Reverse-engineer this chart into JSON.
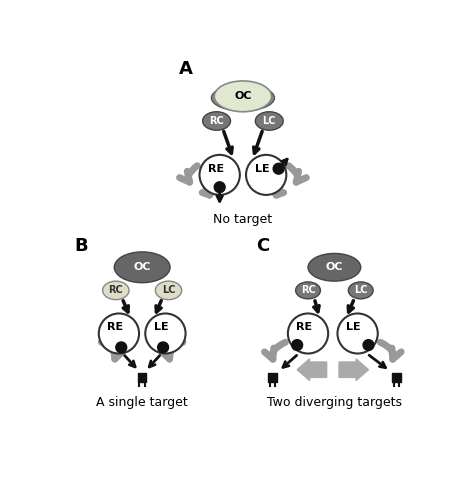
{
  "bg_color": "#ffffff",
  "oc_light_fill": "#e0e8d0",
  "oc_light_edge": "#888888",
  "oc_dark_fill": "#666666",
  "oc_dark_edge": "#444444",
  "rc_lc_light_fill": "#ddddc8",
  "rc_lc_light_edge": "#888888",
  "rc_lc_dark_fill": "#777777",
  "rc_lc_dark_edge": "#444444",
  "eye_fill": "#ffffff",
  "eye_edge": "#333333",
  "pupil_fill": "#111111",
  "arrow_black": "#111111",
  "arrow_gray": "#999999",
  "target_fill": "#111111",
  "gray_big_arrow": "#aaaaaa",
  "panel_A_title": "No target",
  "panel_B_title": "A single target",
  "panel_C_title": "Two diverging targets"
}
